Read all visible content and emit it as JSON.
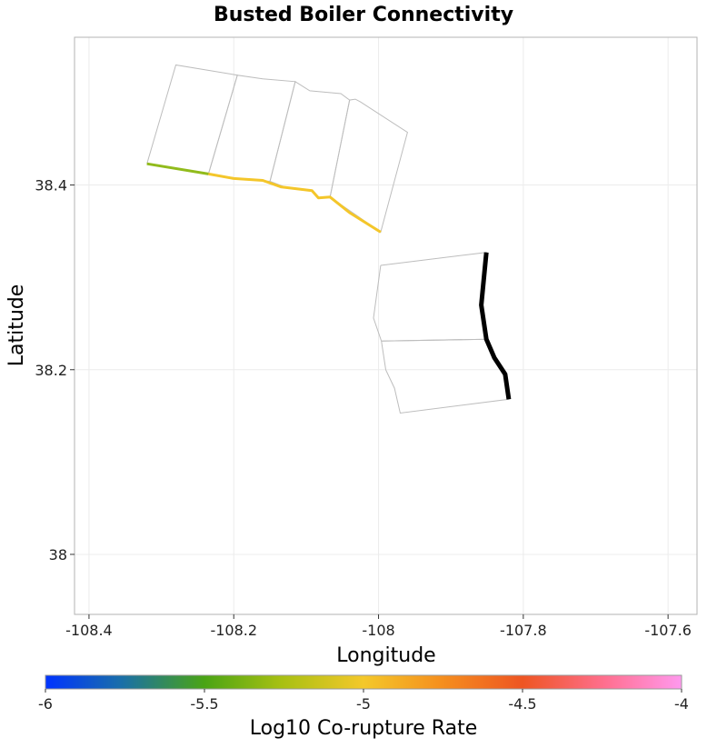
{
  "chart_data": {
    "type": "map",
    "title": "Busted Boiler Connectivity",
    "xlabel": "Longitude",
    "ylabel": "Latitude",
    "xlim": [
      -108.42,
      -107.56
    ],
    "ylim": [
      37.935,
      38.56
    ],
    "x_ticks": [
      -108.4,
      -108.2,
      -108.0,
      -107.8,
      -107.6
    ],
    "x_tick_labels": [
      "-108.4",
      "-108.2",
      "-108",
      "-107.8",
      "-107.6"
    ],
    "y_ticks": [
      38.0,
      38.2,
      38.4
    ],
    "y_tick_labels": [
      "38",
      "38.2",
      "38.4"
    ],
    "grid": true,
    "colorbar": {
      "label": "Log10 Co-rupture Rate",
      "range": [
        -6,
        -4
      ],
      "ticks": [
        -6,
        -5.5,
        -5,
        -4.5,
        -4
      ],
      "tick_labels": [
        "-6",
        "-5.5",
        "-5",
        "-4.5",
        "-4"
      ],
      "stops": [
        {
          "offset": 0.0,
          "color": "#0033ff"
        },
        {
          "offset": 0.12,
          "color": "#1a6fa8"
        },
        {
          "offset": 0.25,
          "color": "#4aa414"
        },
        {
          "offset": 0.37,
          "color": "#a7c012"
        },
        {
          "offset": 0.5,
          "color": "#f4c82a"
        },
        {
          "offset": 0.62,
          "color": "#f5901e"
        },
        {
          "offset": 0.75,
          "color": "#ee5522"
        },
        {
          "offset": 0.88,
          "color": "#ff6f8f"
        },
        {
          "offset": 1.0,
          "color": "#ff99ee"
        }
      ]
    },
    "fault_outlines": [
      {
        "name": "north-section-1",
        "points": [
          [
            -108.32,
            38.423
          ],
          [
            -108.28,
            38.53
          ],
          [
            -108.195,
            38.519
          ],
          [
            -108.235,
            38.412
          ],
          [
            -108.32,
            38.423
          ]
        ]
      },
      {
        "name": "north-section-2",
        "points": [
          [
            -108.235,
            38.412
          ],
          [
            -108.195,
            38.519
          ],
          [
            -108.16,
            38.515
          ],
          [
            -108.115,
            38.512
          ],
          [
            -108.15,
            38.404
          ],
          [
            -108.2,
            38.407
          ],
          [
            -108.235,
            38.412
          ]
        ]
      },
      {
        "name": "north-section-3",
        "points": [
          [
            -108.15,
            38.404
          ],
          [
            -108.115,
            38.512
          ],
          [
            -108.095,
            38.502
          ],
          [
            -108.052,
            38.499
          ],
          [
            -108.04,
            38.492
          ],
          [
            -108.067,
            38.387
          ],
          [
            -108.083,
            38.386
          ],
          [
            -108.092,
            38.394
          ],
          [
            -108.13,
            38.398
          ],
          [
            -108.15,
            38.404
          ]
        ]
      },
      {
        "name": "north-section-4",
        "points": [
          [
            -108.067,
            38.387
          ],
          [
            -108.04,
            38.492
          ],
          [
            -108.032,
            38.493
          ],
          [
            -108.025,
            38.49
          ],
          [
            -107.96,
            38.457
          ],
          [
            -107.997,
            38.349
          ],
          [
            -108.067,
            38.387
          ]
        ]
      },
      {
        "name": "south-section-1",
        "points": [
          [
            -107.997,
            38.313
          ],
          [
            -107.851,
            38.327
          ],
          [
            -107.858,
            38.27
          ],
          [
            -107.85,
            38.233
          ],
          [
            -107.996,
            38.231
          ],
          [
            -108.007,
            38.256
          ],
          [
            -107.997,
            38.313
          ]
        ]
      },
      {
        "name": "south-section-2",
        "points": [
          [
            -107.996,
            38.231
          ],
          [
            -107.85,
            38.233
          ],
          [
            -107.84,
            38.213
          ],
          [
            -107.825,
            38.195
          ],
          [
            -107.82,
            38.168
          ],
          [
            -107.97,
            38.153
          ],
          [
            -107.978,
            38.18
          ],
          [
            -107.99,
            38.2
          ],
          [
            -107.996,
            38.231
          ]
        ]
      }
    ],
    "traces": [
      {
        "name": "trace-north-a",
        "log10_rate": -5.35,
        "color": "#91bb1c",
        "width": 3,
        "points": [
          [
            -108.32,
            38.423
          ],
          [
            -108.235,
            38.412
          ]
        ]
      },
      {
        "name": "trace-north-b",
        "log10_rate": -5.0,
        "color": "#f4c62a",
        "width": 3,
        "points": [
          [
            -108.235,
            38.412
          ],
          [
            -108.2,
            38.407
          ],
          [
            -108.16,
            38.405
          ],
          [
            -108.135,
            38.398
          ],
          [
            -108.092,
            38.394
          ],
          [
            -108.083,
            38.386
          ],
          [
            -108.067,
            38.387
          ],
          [
            -108.04,
            38.37
          ],
          [
            -107.997,
            38.349
          ]
        ]
      },
      {
        "name": "trace-south-source",
        "log10_rate": null,
        "color": "#000000",
        "width": 5,
        "points": [
          [
            -107.851,
            38.327
          ],
          [
            -107.858,
            38.27
          ],
          [
            -107.851,
            38.233
          ],
          [
            -107.84,
            38.213
          ],
          [
            -107.825,
            38.195
          ],
          [
            -107.82,
            38.168
          ]
        ]
      }
    ]
  }
}
